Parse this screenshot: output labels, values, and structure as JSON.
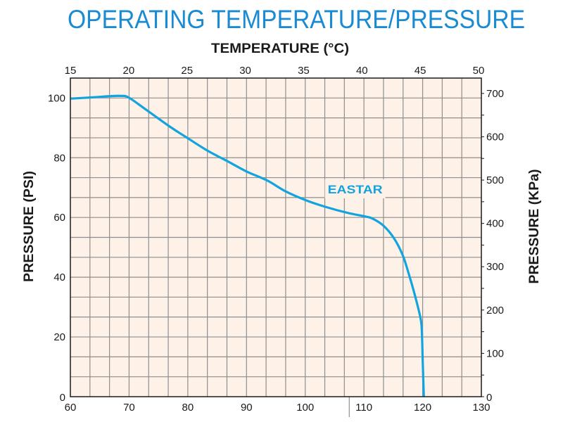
{
  "chart_data": {
    "type": "line",
    "title": "OPERATING TEMPERATURE/PRESSURE",
    "xlabel": "",
    "x_top_label": "TEMPERATURE (°C)",
    "ylabel": "PRESSURE (PSI)",
    "y_right_label": "PRESSURE (KPa)",
    "xlim": [
      60,
      130
    ],
    "ylim": [
      0,
      106.67
    ],
    "x_ticks": [
      60,
      70,
      80,
      90,
      100,
      110,
      120,
      130
    ],
    "x_top_ticks": [
      15,
      20,
      25,
      30,
      35,
      40,
      45,
      50
    ],
    "y_ticks": [
      0,
      20,
      40,
      60,
      80,
      100
    ],
    "y_right_ticks": [
      0,
      100,
      200,
      300,
      400,
      500,
      600,
      700
    ],
    "y_right_unit_per_left_unit": 6.895,
    "grid": true,
    "grid_x_step": 3.3333,
    "grid_y_step": 6.6667,
    "marker_x": 107.5,
    "colors": {
      "title": "#1a8bd2",
      "series": "#12a4df",
      "plot_background": "#fdf1e8",
      "grid": "#8e8e8e",
      "axis": "#1a1a1a"
    },
    "series": [
      {
        "name": "EASTAR",
        "label_at": [
          108.5,
          69
        ],
        "x": [
          60.1,
          63.6,
          66.6,
          68.6,
          69.9,
          72.6,
          76.8,
          80.1,
          83.5,
          86.7,
          90.0,
          93.6,
          96.6,
          100.2,
          103.7,
          107.3,
          110.3,
          111.5,
          113.3,
          115.1,
          116.6,
          117.5,
          118.7,
          119.7,
          119.9,
          120.0,
          120.2
        ],
        "y": [
          99.8,
          100.2,
          100.6,
          100.7,
          100.2,
          96.5,
          90.6,
          86.4,
          82.2,
          78.9,
          75.4,
          72.3,
          68.8,
          65.7,
          63.4,
          61.5,
          60.3,
          59.6,
          57.3,
          53.1,
          47.4,
          42.0,
          33.8,
          25.6,
          19.7,
          12.7,
          0
        ]
      }
    ]
  }
}
